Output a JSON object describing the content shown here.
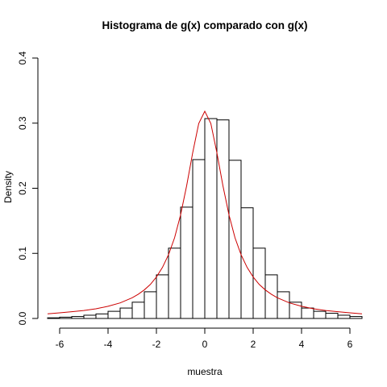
{
  "chart_data": {
    "type": "bar",
    "title": "Histograma de g(x) comparado con g(x)",
    "xlabel": "muestra",
    "ylabel": "Density",
    "xlim": [
      -6.5,
      6.5
    ],
    "ylim": [
      0,
      0.4
    ],
    "x_ticks": [
      "-6",
      "-4",
      "-2",
      "0",
      "2",
      "4",
      "6"
    ],
    "y_ticks": [
      "0.0",
      "0.1",
      "0.2",
      "0.3",
      "0.4"
    ],
    "bin_width": 0.5,
    "bins": [
      {
        "x0": -6.5,
        "x1": -6.0,
        "density": 0.001
      },
      {
        "x0": -6.0,
        "x1": -5.5,
        "density": 0.002
      },
      {
        "x0": -5.5,
        "x1": -5.0,
        "density": 0.003
      },
      {
        "x0": -5.0,
        "x1": -4.5,
        "density": 0.005
      },
      {
        "x0": -4.5,
        "x1": -4.0,
        "density": 0.007
      },
      {
        "x0": -4.0,
        "x1": -3.5,
        "density": 0.011
      },
      {
        "x0": -3.5,
        "x1": -3.0,
        "density": 0.016
      },
      {
        "x0": -3.0,
        "x1": -2.5,
        "density": 0.025
      },
      {
        "x0": -2.5,
        "x1": -2.0,
        "density": 0.041
      },
      {
        "x0": -2.0,
        "x1": -1.5,
        "density": 0.067
      },
      {
        "x0": -1.5,
        "x1": -1.0,
        "density": 0.108
      },
      {
        "x0": -1.0,
        "x1": -0.5,
        "density": 0.171
      },
      {
        "x0": -0.5,
        "x1": 0.0,
        "density": 0.244
      },
      {
        "x0": 0.0,
        "x1": 0.5,
        "density": 0.307
      },
      {
        "x0": 0.5,
        "x1": 1.0,
        "density": 0.305
      },
      {
        "x0": 1.0,
        "x1": 1.5,
        "density": 0.243
      },
      {
        "x0": 1.5,
        "x1": 2.0,
        "density": 0.17
      },
      {
        "x0": 2.0,
        "x1": 2.5,
        "density": 0.108
      },
      {
        "x0": 2.5,
        "x1": 3.0,
        "density": 0.067
      },
      {
        "x0": 3.0,
        "x1": 3.5,
        "density": 0.041
      },
      {
        "x0": 3.5,
        "x1": 4.0,
        "density": 0.025
      },
      {
        "x0": 4.0,
        "x1": 4.5,
        "density": 0.016
      },
      {
        "x0": 4.5,
        "x1": 5.0,
        "density": 0.011
      },
      {
        "x0": 5.0,
        "x1": 5.5,
        "density": 0.008
      },
      {
        "x0": 5.5,
        "x1": 6.0,
        "density": 0.005
      },
      {
        "x0": 6.0,
        "x1": 6.5,
        "density": 0.003
      }
    ],
    "curve": {
      "name": "g(x)",
      "color": "#cc0000",
      "x": [
        -6.5,
        -6.0,
        -5.5,
        -5.0,
        -4.5,
        -4.0,
        -3.5,
        -3.0,
        -2.75,
        -2.5,
        -2.25,
        -2.0,
        -1.75,
        -1.5,
        -1.25,
        -1.0,
        -0.75,
        -0.5,
        -0.25,
        0.0,
        0.25,
        0.5,
        0.75,
        1.0,
        1.25,
        1.5,
        1.75,
        2.0,
        2.25,
        2.5,
        2.75,
        3.0,
        3.5,
        4.0,
        4.5,
        5.0,
        5.5,
        6.0,
        6.5
      ],
      "y": [
        0.0072,
        0.0086,
        0.0103,
        0.0122,
        0.0149,
        0.0187,
        0.0239,
        0.0318,
        0.0372,
        0.0439,
        0.0523,
        0.0637,
        0.0784,
        0.0979,
        0.1238,
        0.1592,
        0.2039,
        0.2546,
        0.2995,
        0.3183,
        0.2995,
        0.2546,
        0.2039,
        0.1592,
        0.1238,
        0.0979,
        0.0784,
        0.0637,
        0.0523,
        0.0439,
        0.0372,
        0.0318,
        0.0239,
        0.0187,
        0.0149,
        0.0122,
        0.0103,
        0.0086,
        0.0072
      ]
    }
  }
}
